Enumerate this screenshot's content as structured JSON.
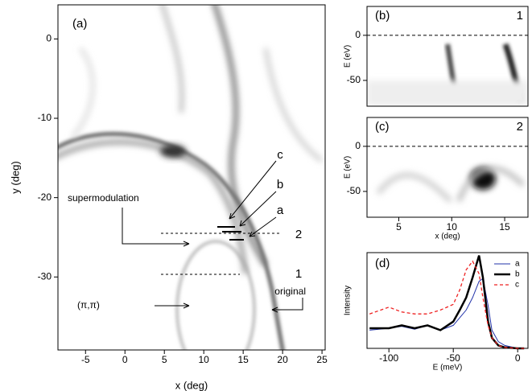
{
  "chart_data": [
    {
      "type": "image",
      "xlabel": "x (deg)",
      "ylabel": "y (deg)",
      "xlim": [
        -8.5,
        25.4
      ],
      "ylim": [
        -39.2,
        4.3
      ],
      "xticks": [
        -5,
        0,
        5,
        10,
        15,
        20,
        25
      ],
      "yticks": [
        0,
        -10,
        -20,
        -30
      ],
      "annotations": [
        "(a)",
        "c",
        "b",
        "a",
        "2",
        "1",
        "supermodulation",
        "(π,π)",
        "original"
      ]
    },
    {
      "type": "image",
      "ylabel": "E (eV)",
      "xlim": [
        2,
        17.2
      ],
      "ylim": [
        -78.6,
        32
      ],
      "yticks": [
        0,
        -50
      ],
      "zero_line": true,
      "annotations": [
        "(b)",
        "1"
      ]
    },
    {
      "type": "image",
      "xlabel": "x (deg)",
      "ylabel": "E (eV)",
      "xlim": [
        2,
        17.2
      ],
      "ylim": [
        -78.6,
        32
      ],
      "xticks": [
        5,
        10,
        15
      ],
      "yticks": [
        0,
        -50
      ],
      "zero_line": true,
      "annotations": [
        "(c)",
        "2"
      ]
    },
    {
      "type": "line",
      "xlabel": "E (meV)",
      "ylabel": "Intensity",
      "xlim": [
        -117,
        8
      ],
      "ylim": [
        0,
        1
      ],
      "xticks": [
        -100,
        -50,
        0
      ],
      "legend": "upper-right",
      "annotations": [
        "(d)"
      ],
      "x": [
        -115,
        -100,
        -90,
        -80,
        -70,
        -60,
        -50,
        -45,
        -40,
        -35,
        -30,
        -27,
        -23,
        -20,
        -15,
        -10,
        0,
        5
      ],
      "series": [
        {
          "name": "a",
          "color": "#2233aa",
          "width": 1,
          "dash": false,
          "values": [
            0.19,
            0.21,
            0.23,
            0.2,
            0.24,
            0.19,
            0.24,
            0.32,
            0.4,
            0.53,
            0.7,
            0.73,
            0.45,
            0.19,
            0.07,
            0.03,
            0,
            0
          ]
        },
        {
          "name": "b",
          "color": "#000000",
          "width": 2.5,
          "dash": false,
          "values": [
            0.21,
            0.21,
            0.24,
            0.21,
            0.24,
            0.19,
            0.28,
            0.4,
            0.53,
            0.74,
            0.97,
            0.74,
            0.28,
            0.11,
            0.03,
            0.01,
            0,
            0
          ]
        },
        {
          "name": "c",
          "color": "#ee2222",
          "width": 1.3,
          "dash": true,
          "values": [
            0.36,
            0.43,
            0.38,
            0.36,
            0.36,
            0.4,
            0.46,
            0.61,
            0.82,
            0.91,
            0.78,
            0.53,
            0.24,
            0.11,
            0.03,
            0.01,
            0,
            0
          ]
        }
      ]
    }
  ]
}
